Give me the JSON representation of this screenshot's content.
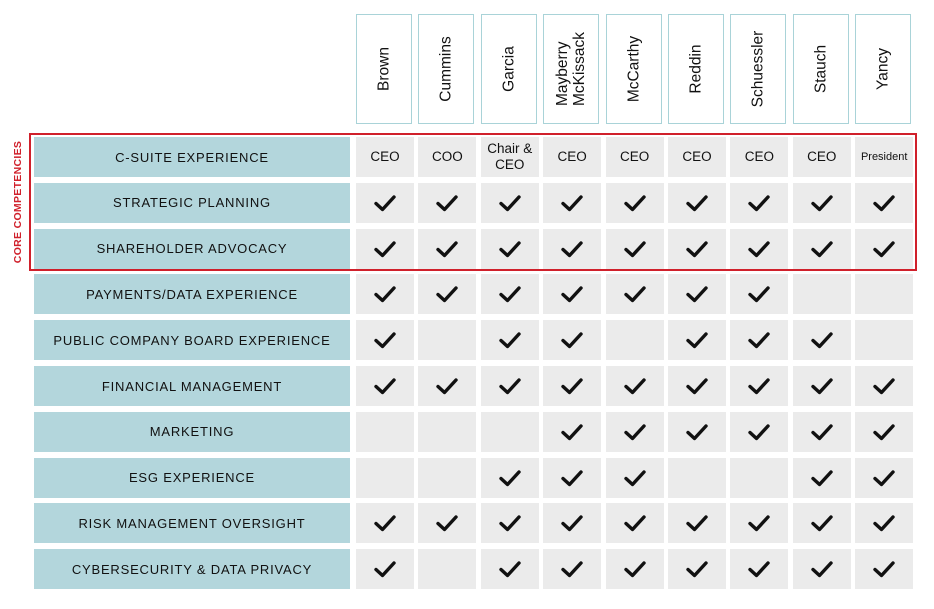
{
  "core_label": "CORE COMPETENCIES",
  "directors": [
    "Brown",
    "Cummins",
    "Garcia",
    "Mayberry\nMcKissack",
    "McCarthy",
    "Reddin",
    "Schuessler",
    "Stauch",
    "Yancy"
  ],
  "rows": [
    {
      "label": "C-SUITE EXPERIENCE",
      "core": true,
      "cells": [
        "CEO",
        "COO",
        "Chair &\nCEO",
        "CEO",
        "CEO",
        "CEO",
        "CEO",
        "CEO",
        "President"
      ]
    },
    {
      "label": "STRATEGIC PLANNING",
      "core": true,
      "cells": [
        true,
        true,
        true,
        true,
        true,
        true,
        true,
        true,
        true
      ]
    },
    {
      "label": "SHAREHOLDER ADVOCACY",
      "core": true,
      "cells": [
        true,
        true,
        true,
        true,
        true,
        true,
        true,
        true,
        true
      ]
    },
    {
      "label": "PAYMENTS/DATA EXPERIENCE",
      "core": false,
      "cells": [
        true,
        true,
        true,
        true,
        true,
        true,
        true,
        false,
        false
      ]
    },
    {
      "label": "PUBLIC COMPANY BOARD EXPERIENCE",
      "core": false,
      "cells": [
        true,
        false,
        true,
        true,
        false,
        true,
        true,
        true,
        false
      ]
    },
    {
      "label": "FINANCIAL MANAGEMENT",
      "core": false,
      "cells": [
        true,
        true,
        true,
        true,
        true,
        true,
        true,
        true,
        true
      ]
    },
    {
      "label": "MARKETING",
      "core": false,
      "cells": [
        false,
        false,
        false,
        true,
        true,
        true,
        true,
        true,
        true
      ]
    },
    {
      "label": "ESG EXPERIENCE",
      "core": false,
      "cells": [
        false,
        false,
        true,
        true,
        true,
        false,
        false,
        true,
        true
      ]
    },
    {
      "label": "RISK MANAGEMENT OVERSIGHT",
      "core": false,
      "cells": [
        true,
        true,
        true,
        true,
        true,
        true,
        true,
        true,
        true
      ]
    },
    {
      "label": "CYBERSECURITY & DATA PRIVACY",
      "core": false,
      "cells": [
        true,
        false,
        true,
        true,
        true,
        true,
        true,
        true,
        true
      ]
    }
  ],
  "colors": {
    "label_bg": "#b3d6dc",
    "cell_bg": "#ebebeb",
    "header_border": "#a9d3d8",
    "core_border": "#d0202b",
    "check": "#111111"
  },
  "icons": {
    "check": "check-icon"
  }
}
